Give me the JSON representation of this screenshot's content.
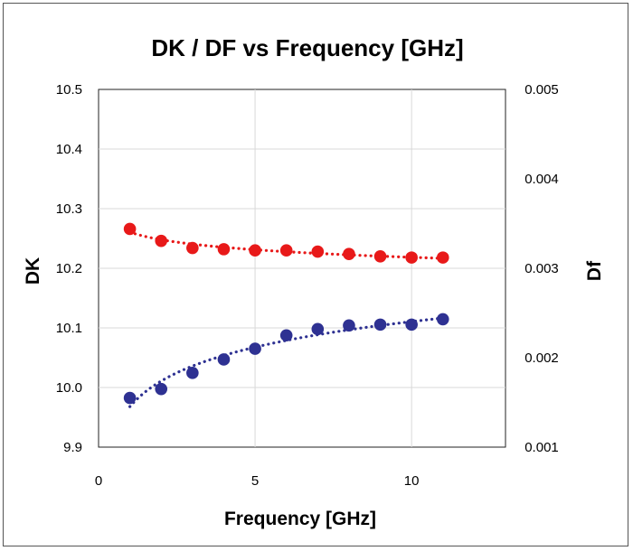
{
  "chart_data": {
    "type": "scatter",
    "title": "DK / DF vs Frequency [GHz]",
    "xlabel": "Frequency [GHz]",
    "ylabel": "DK",
    "y2label": "Df",
    "xlim": [
      0,
      13
    ],
    "ylim": [
      9.9,
      10.5
    ],
    "y2lim": [
      0.001,
      0.005
    ],
    "x_ticks": [
      "0",
      "5",
      "10"
    ],
    "x_tick_values": [
      0,
      5,
      10
    ],
    "y_ticks": [
      "9.9",
      "10.0",
      "10.1",
      "10.2",
      "10.3",
      "10.4",
      "10.5"
    ],
    "y_tick_values": [
      9.9,
      10.0,
      10.1,
      10.2,
      10.3,
      10.4,
      10.5
    ],
    "y2_ticks": [
      "0.001",
      "0.002",
      "0.003",
      "0.004",
      "0.005"
    ],
    "y2_tick_values": [
      0.001,
      0.002,
      0.003,
      0.004,
      0.005
    ],
    "vertical_gridlines_x": [
      5,
      10
    ],
    "grid": true,
    "trendline_style": "dotted",
    "series": [
      {
        "axis": "left",
        "color": "#e81919",
        "x": [
          1.0,
          2.0,
          3.0,
          4.0,
          5.0,
          6.0,
          7.0,
          8.0,
          9.0,
          10.0,
          11.0
        ],
        "y": [
          10.266,
          10.246,
          10.234,
          10.232,
          10.23,
          10.23,
          10.228,
          10.224,
          10.22,
          10.218,
          10.218
        ]
      },
      {
        "axis": "right",
        "color": "#2e3192",
        "x": [
          1.0,
          2.0,
          3.0,
          4.0,
          5.0,
          6.0,
          7.0,
          8.0,
          9.0,
          10.0,
          11.0
        ],
        "y": [
          0.00155,
          0.00165,
          0.00183,
          0.00198,
          0.0021,
          0.00225,
          0.00232,
          0.00236,
          0.00237,
          0.00237,
          0.00243
        ]
      }
    ]
  }
}
